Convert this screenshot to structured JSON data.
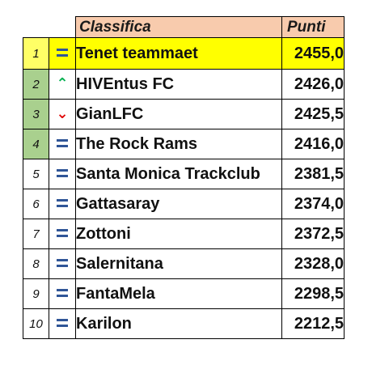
{
  "header": {
    "classifica_label": "Classifica",
    "punti_label": "Punti"
  },
  "colors": {
    "leader_row": "#ffff00",
    "header_bg": "#f8cbad",
    "rank_highlight": "#a9d08e",
    "equal": "#2f5597",
    "up": "#00b050",
    "down": "#e00000"
  },
  "rows": [
    {
      "rank": "1",
      "trend": "equal",
      "team": "Tenet teammaet",
      "points": "2455,0"
    },
    {
      "rank": "2",
      "trend": "up",
      "team": "HIVEntus FC",
      "points": "2426,0"
    },
    {
      "rank": "3",
      "trend": "down",
      "team": "GianLFC",
      "points": "2425,5"
    },
    {
      "rank": "4",
      "trend": "equal",
      "team": "The Rock Rams",
      "points": "2416,0"
    },
    {
      "rank": "5",
      "trend": "equal",
      "team": "Santa Monica Trackclub",
      "points": "2381,5"
    },
    {
      "rank": "6",
      "trend": "equal",
      "team": "Gattasaray",
      "points": "2374,0"
    },
    {
      "rank": "7",
      "trend": "equal",
      "team": "Zottoni",
      "points": "2372,5"
    },
    {
      "rank": "8",
      "trend": "equal",
      "team": "Salernitana",
      "points": "2328,0"
    },
    {
      "rank": "9",
      "trend": "equal",
      "team": "FantaMela",
      "points": "2298,5"
    },
    {
      "rank": "10",
      "trend": "equal",
      "team": "Karilon",
      "points": "2212,5"
    }
  ]
}
